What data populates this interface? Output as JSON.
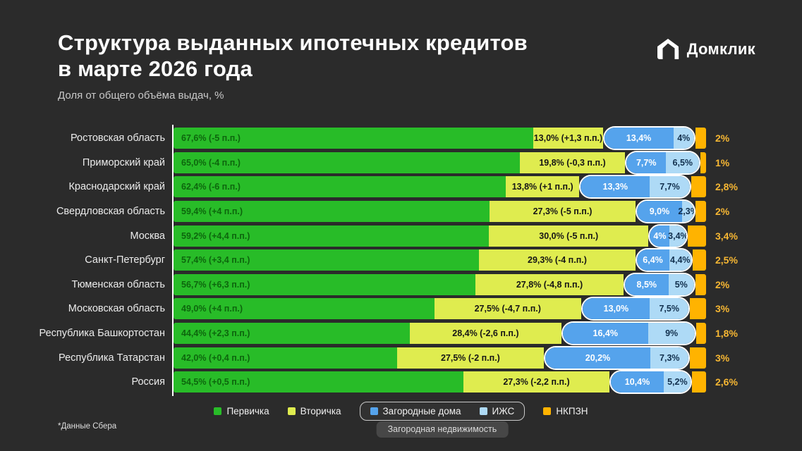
{
  "title": {
    "line1": "Структура выданных ипотечных кредитов",
    "line2": "в марте 2026 года"
  },
  "subtitle": "Доля от общего объёма выдач, %",
  "logo": {
    "text": "Домклик"
  },
  "footnote": "*Данные Сбера",
  "colors": {
    "background": "#2b2b2b",
    "primary_green": "#28BC28",
    "secondary_yellow": "#DFEC4F",
    "country_blue": "#55A3EC",
    "izhs_lightblue": "#AEDAF6",
    "nkpzn_orange": "#FFB300",
    "outside_label_orange": "#F7B733",
    "axis_white": "#FFFFFF"
  },
  "legend": {
    "items": [
      {
        "label": "Первичка",
        "color": "#28BC28"
      },
      {
        "label": "Вторичка",
        "color": "#DFEC4F"
      },
      {
        "label": "Загородные дома",
        "color": "#55A3EC"
      },
      {
        "label": "ИЖС",
        "color": "#AEDAF6"
      },
      {
        "label": "НКПЗН",
        "color": "#FFB300"
      }
    ],
    "group_label": "Загородная недвижимость"
  },
  "chart_data": {
    "type": "bar",
    "orientation": "horizontal",
    "stacked": true,
    "value_unit": "%",
    "xlim": [
      0,
      100
    ],
    "grid": false,
    "legend_position": "bottom",
    "categories": [
      "Ростовская область",
      "Приморский край",
      "Краснодарский край",
      "Свердловская область",
      "Москва",
      "Санкт-Петербург",
      "Тюменская область",
      "Московская область",
      "Республика Башкортостан",
      "Республика Татарстан",
      "Россия"
    ],
    "series": [
      {
        "name": "Первичка",
        "color": "#28BC28",
        "text_color": "#0d660d",
        "values": [
          67.6,
          65.0,
          62.4,
          59.4,
          59.2,
          57.4,
          56.7,
          49.0,
          44.4,
          42.0,
          54.5
        ],
        "labels": [
          "67,6% (-5 п.п.)",
          "65,0% (-4 п.п.)",
          "62,4% (-6 п.п.)",
          "59,4% (+4 п.п.)",
          "59,2% (+4,4 п.п.)",
          "57,4% (+3,4 п.п.)",
          "56,7% (+6,3 п.п.)",
          "49,0% (+4 п.п.)",
          "44,4% (+2,3 п.п.)",
          "42,0% (+0,4 п.п.)",
          "54,5% (+0,5 п.п.)"
        ]
      },
      {
        "name": "Вторичка",
        "color": "#DFEC4F",
        "text_color": "#161616",
        "values": [
          13.0,
          19.8,
          13.8,
          27.3,
          30.0,
          29.3,
          27.8,
          27.5,
          28.4,
          27.5,
          27.3
        ],
        "labels": [
          "13,0% (+1,3 п.п.)",
          "19,8% (-0,3 п.п.)",
          "13,8% (+1 п.п.)",
          "27,3% (-5 п.п.)",
          "30,0% (-5 п.п.)",
          "29,3% (-4 п.п.)",
          "27,8% (-4,8 п.п.)",
          "27,5% (-4,7 п.п.)",
          "28,4% (-2,6 п.п.)",
          "27,5% (-2 п.п.)",
          "27,3% (-2,2 п.п.)"
        ]
      },
      {
        "name": "Загородные дома",
        "color": "#55A3EC",
        "text_color": "#ffffff",
        "values": [
          13.4,
          7.7,
          13.3,
          9.0,
          4,
          6.4,
          8.5,
          13.0,
          16.4,
          20.2,
          10.4
        ],
        "labels": [
          "13,4%",
          "7,7%",
          "13,3%",
          "9,0%",
          "4%",
          "6,4%",
          "8,5%",
          "13,0%",
          "16,4%",
          "20,2%",
          "10,4%"
        ]
      },
      {
        "name": "ИЖС",
        "color": "#AEDAF6",
        "text_color": "#12304e",
        "values": [
          4,
          6.5,
          7.7,
          2.3,
          3.4,
          4.4,
          5,
          7.5,
          9,
          7.3,
          5.2
        ],
        "labels": [
          "4%",
          "6,5%",
          "7,7%",
          "2,3%",
          "3,4%",
          "4,4%",
          "5%",
          "7,5%",
          "9%",
          "7,3%",
          "5,2%"
        ]
      },
      {
        "name": "НКПЗН",
        "color": "#FFB300",
        "text_color": "#F7B733",
        "values": [
          2,
          1,
          2.8,
          2,
          3.4,
          2.5,
          2,
          3,
          1.8,
          3,
          2.6
        ],
        "labels": [
          "2%",
          "1%",
          "2,8%",
          "2%",
          "3,4%",
          "2,5%",
          "2%",
          "3%",
          "1,8%",
          "3%",
          "2,6%"
        ]
      }
    ],
    "grouped_series": {
      "label": "Загородная недвижимость",
      "members": [
        "Загородные дома",
        "ИЖС"
      ]
    }
  }
}
